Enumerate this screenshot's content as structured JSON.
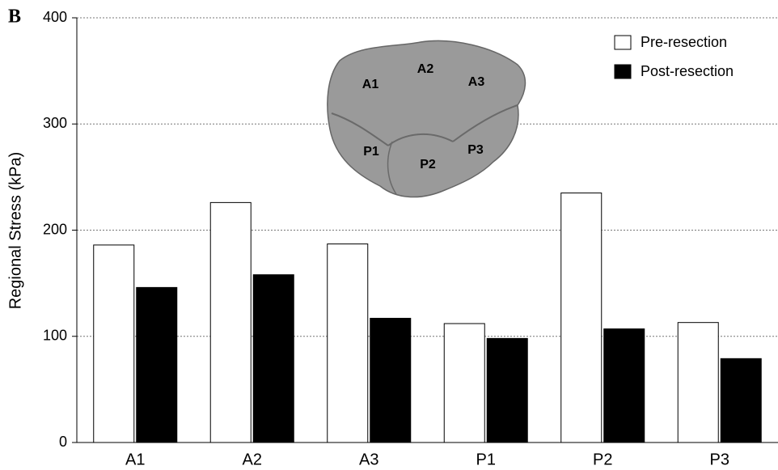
{
  "chart_data": {
    "type": "bar",
    "panel_label": "B",
    "ylabel": "Regional Stress  (kPa)",
    "categories": [
      "A1",
      "A2",
      "A3",
      "P1",
      "P2",
      "P3"
    ],
    "series": [
      {
        "name": "Pre-resection",
        "color": "#ffffff",
        "values": [
          186,
          226,
          187,
          112,
          235,
          113
        ]
      },
      {
        "name": "Post-resection",
        "color": "#000000",
        "values": [
          146,
          158,
          117,
          98,
          107,
          79
        ]
      }
    ],
    "ylim": [
      0,
      400
    ],
    "yticks": [
      0,
      100,
      200,
      300,
      400
    ],
    "grid": true,
    "legend": "upper right",
    "inset_labels": [
      "A1",
      "A2",
      "A3",
      "P1",
      "P2",
      "P3"
    ]
  }
}
